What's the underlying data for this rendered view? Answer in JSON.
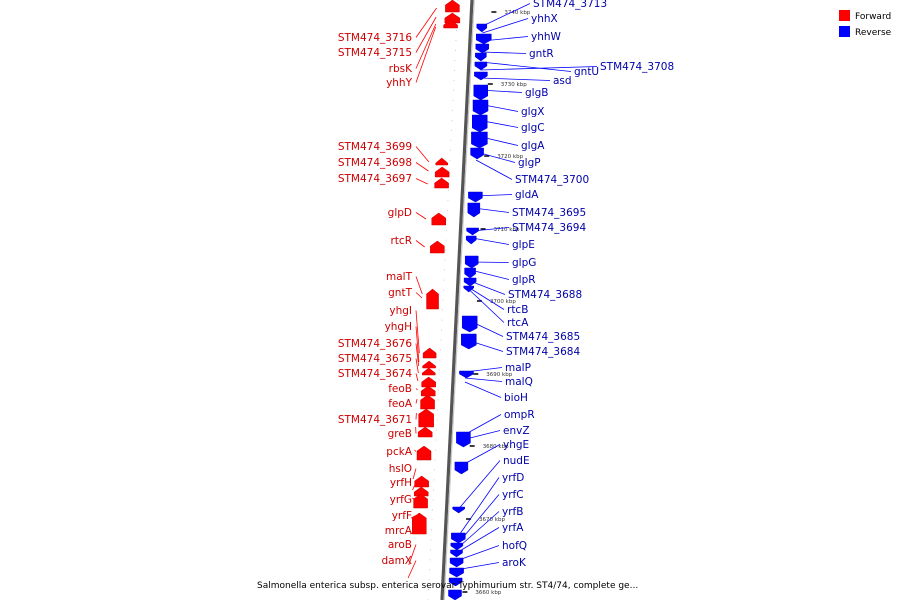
{
  "caption": "Salmonella enterica subsp. enterica serovar Typhimurium str. ST4/74, complete ge...",
  "legend": {
    "forward": {
      "label": "Forward",
      "color": "#ff0000"
    },
    "reverse": {
      "label": "Reverse",
      "color": "#0000ff"
    }
  },
  "ticks": [
    "3740 kbp",
    "3730 kbp",
    "3720 kbp",
    "3710 kbp",
    "3700 kbp",
    "3690 kbp",
    "3680 kbp",
    "3670 kbp",
    "3660 kbp"
  ],
  "forward_genes": [
    "STM474_3716",
    "STM474_3715",
    "rbsK",
    "yhhY",
    "STM474_3699",
    "STM474_3698",
    "STM474_3697",
    "glpD",
    "rtcR",
    "malT",
    "gntT",
    "yhgI",
    "yhgH",
    "STM474_3676",
    "STM474_3675",
    "STM474_3674",
    "feoB",
    "feoA",
    "STM474_3671",
    "greB",
    "pckA",
    "hslO",
    "yrfH",
    "yrfG",
    "yrfF",
    "mrcA",
    "aroB",
    "damX"
  ],
  "reverse_genes": [
    "STM474_3713",
    "yhhX",
    "yhhW",
    "gntR",
    "gntU",
    "STM474_3708",
    "asd",
    "glgB",
    "glgX",
    "glgC",
    "glgA",
    "glgP",
    "STM474_3700",
    "gldA",
    "STM474_3695",
    "STM474_3694",
    "glpE",
    "glpG",
    "glpR",
    "STM474_3688",
    "rtcB",
    "rtcA",
    "STM474_3685",
    "STM474_3684",
    "malP",
    "malQ",
    "bioH",
    "ompR",
    "envZ",
    "yhgE",
    "nudE",
    "yrfD",
    "yrfC",
    "yrfB",
    "yrfA",
    "hofQ",
    "aroK"
  ]
}
